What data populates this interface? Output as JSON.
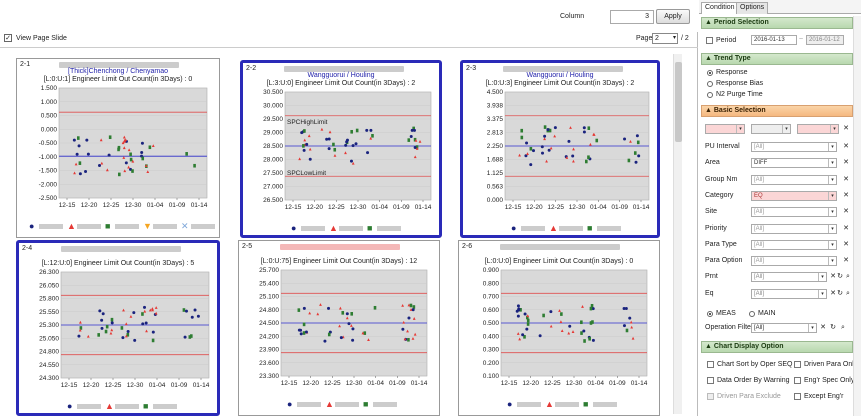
{
  "toolbar": {
    "column_label": "Column",
    "column_value": "3",
    "apply_label": "Apply"
  },
  "viewbar": {
    "view_slide_label": "View Page Slide",
    "view_slide_checked": "✓",
    "page_label": "Page",
    "page_value": "2",
    "page_total": "/ 2",
    "dropdown_icon": "▾"
  },
  "x_ticks": [
    "12-15",
    "12-20",
    "12-25",
    "12-30",
    "01-04",
    "01-09",
    "01-14"
  ],
  "charts": [
    {
      "id": "2-1",
      "title": "[Thick]Chenchong / Chenyamao",
      "count": "[L:0:U:1]  Engineer Limit Out Count(in 3Days) : 0",
      "yticks": [
        "1.500",
        "1.000",
        "0.500",
        "0.000",
        "-0.500",
        "-1.000",
        "-1.500",
        "-2.000",
        "-2.500"
      ],
      "ucl_label": "",
      "lcl_label": ""
    },
    {
      "id": "2-2",
      "title": "Wangguorui / Houling",
      "count": "[L:3:U:0]  Engineer Limit Out Count(in 3Days) : 2",
      "yticks": [
        "30.500",
        "30.000",
        "29.500",
        "29.000",
        "28.500",
        "28.000",
        "27.500",
        "27.000",
        "26.500"
      ],
      "ucl_label": "SPCHighLimit",
      "lcl_label": "SPCLowLimit"
    },
    {
      "id": "2-3",
      "title": "Wangguorui / Houling",
      "count": "[L:0:U:3]  Engineer Limit Out Count(in 3Days) : 2",
      "yticks": [
        "4.500",
        "3.938",
        "3.375",
        "2.813",
        "2.250",
        "1.688",
        "1.125",
        "0.563",
        "0.000"
      ],
      "ucl_label": "",
      "lcl_label": ""
    },
    {
      "id": "2-4",
      "title": "",
      "count": "[L:12:U:0]  Engineer Limit Out Count(in 3Days) : 5",
      "yticks": [
        "26.300",
        "26.050",
        "25.800",
        "25.550",
        "25.300",
        "25.050",
        "24.800",
        "24.550",
        "24.300"
      ],
      "ucl_label": "",
      "lcl_label": ""
    },
    {
      "id": "2-5",
      "title": "",
      "count": "[L:0:U:75]  Engineer Limit Out Count(in 3Days) : 12",
      "yticks": [
        "25.700",
        "25.400",
        "25.100",
        "24.800",
        "24.500",
        "24.200",
        "23.900",
        "23.600",
        "23.300"
      ],
      "ucl_label": "",
      "lcl_label": ""
    },
    {
      "id": "2-6",
      "title": "",
      "count": "[L:0:U:0]  Engineer Limit Out Count(in 3Days) : 0",
      "yticks": [
        "0.900",
        "0.800",
        "0.700",
        "0.600",
        "0.500",
        "0.400",
        "0.300",
        "0.200",
        "0.100"
      ],
      "ucl_label": "",
      "lcl_label": ""
    }
  ],
  "panel": {
    "tab_condition": "Condition",
    "tab_options": "Options",
    "period_section": "Period Selection",
    "period_label": "Period",
    "date_from": "2016-01-13",
    "date_sep": "~",
    "date_to": "2016-01-12",
    "trend_section": "Trend Type",
    "trend_response": "Response",
    "trend_bias": "Response Bias",
    "trend_n2": "N2 Purge Time",
    "basic_section": "Basic Selection",
    "fields": [
      {
        "label": "PU Interval",
        "value": "[All]"
      },
      {
        "label": "Area",
        "value": "DIFF"
      },
      {
        "label": "Group Nm",
        "value": "[All]"
      },
      {
        "label": "Category",
        "value": "EQ"
      },
      {
        "label": "Site",
        "value": "[All]"
      },
      {
        "label": "Priority",
        "value": "[All]"
      },
      {
        "label": "Para Type",
        "value": "[All]"
      },
      {
        "label": "Para Option",
        "value": "[All]"
      },
      {
        "label": "Prnt",
        "value": "[All]"
      },
      {
        "label": "Eq",
        "value": "[All]"
      }
    ],
    "meas": "MEAS",
    "main": "MAIN",
    "opfilter_label": "Operation Filter",
    "opfilter_value": "[All]",
    "chart_opt_section": "Chart Display  Option",
    "opt1": "Chart Sort by Oper SEQ",
    "opt2": "Driven Para Only",
    "opt3": "Data Order By Warning",
    "opt4": "Eng'r Spec Only",
    "opt5": "Driven Para Exclude",
    "opt6": "Except Eng'r"
  },
  "colors": {
    "selected_border": "#2a2ab8",
    "limit_red": "#e05050",
    "center_blue": "#3030d0",
    "series_navy": "#1a237e",
    "series_red": "#e53935",
    "series_green": "#2e7d32",
    "series_orange": "#f5a623",
    "series_lightblue": "#7fa7d9"
  }
}
